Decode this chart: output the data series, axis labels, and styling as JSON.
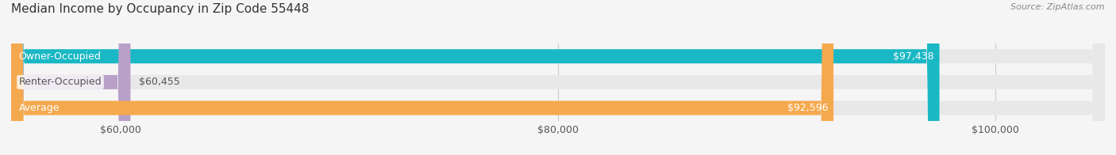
{
  "title": "Median Income by Occupancy in Zip Code 55448",
  "source": "Source: ZipAtlas.com",
  "categories": [
    "Owner-Occupied",
    "Renter-Occupied",
    "Average"
  ],
  "values": [
    97438,
    60455,
    92596
  ],
  "bar_colors": [
    "#1ab8c4",
    "#b8a0c8",
    "#f5a94e"
  ],
  "bar_label_colors": [
    "#ffffff",
    "#555555",
    "#ffffff"
  ],
  "label_inside": [
    true,
    false,
    true
  ],
  "value_labels": [
    "$97,438",
    "$60,455",
    "$92,596"
  ],
  "xlim_min": 55000,
  "xlim_max": 105000,
  "xticks": [
    60000,
    80000,
    100000
  ],
  "xtick_labels": [
    "$60,000",
    "$80,000",
    "$100,000"
  ],
  "background_color": "#f5f5f5",
  "bar_background_color": "#e8e8e8",
  "title_fontsize": 11,
  "source_fontsize": 8,
  "tick_fontsize": 9,
  "bar_label_fontsize": 9,
  "category_label_fontsize": 9,
  "bar_height": 0.55
}
